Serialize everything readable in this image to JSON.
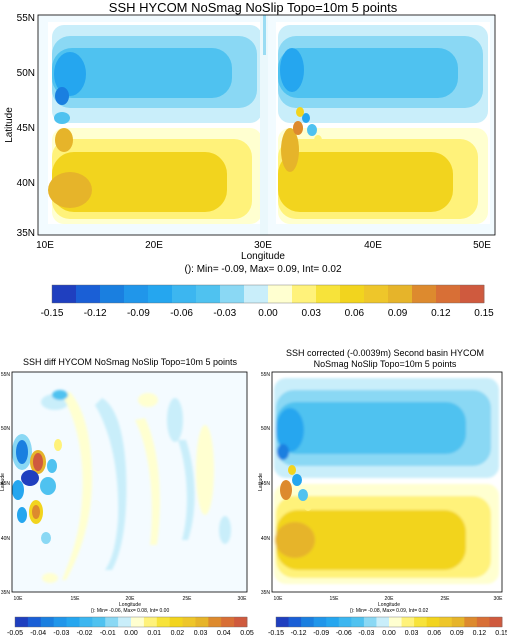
{
  "chart_data": [
    {
      "type": "heatmap",
      "title": "SSH HYCOM NoSmag NoSlip Topo=10m 5 points",
      "xlabel": "Longitude",
      "ylabel": "Latitude",
      "xticks": [
        "10E",
        "20E",
        "30E",
        "40E",
        "50E"
      ],
      "yticks": [
        "55N",
        "50N",
        "45N",
        "40N",
        "35N"
      ],
      "xlim": [
        10,
        51
      ],
      "ylim": [
        35,
        55
      ],
      "stats": "(): Min= -0.09, Max= 0.09, Int= 0.02",
      "colorbar": {
        "levels": [
          -0.15,
          -0.12,
          -0.09,
          -0.06,
          -0.03,
          0.0,
          0.03,
          0.06,
          0.09,
          0.12,
          0.15
        ],
        "labels": [
          "-0.15",
          "-0.12",
          "-0.09",
          "-0.06",
          "-0.03",
          "0.00",
          "0.03",
          "0.06",
          "0.09",
          "0.12",
          "0.15"
        ]
      },
      "basins": [
        {
          "lon_range": [
            11,
            30.5
          ],
          "lat_range": [
            36,
            54.5
          ]
        },
        {
          "lon_range": [
            31.5,
            50.5
          ],
          "lat_range": [
            36,
            54.5
          ]
        }
      ],
      "features": [
        {
          "center": [
            12,
            48.5
          ],
          "value": -0.09
        },
        {
          "center": [
            13,
            43
          ],
          "value": 0.08
        },
        {
          "center": [
            13.5,
            51
          ],
          "value": -0.06
        },
        {
          "center": [
            12,
            39
          ],
          "value": 0.06
        },
        {
          "center": [
            33.5,
            44.5
          ],
          "value": 0.09
        },
        {
          "center": [
            33.5,
            48.5
          ],
          "value": -0.09
        }
      ]
    },
    {
      "type": "heatmap",
      "title": "SSH diff HYCOM NoSmag NoSlip Topo=10m 5 points",
      "xlabel": "Longitude",
      "ylabel": "Latitude",
      "xticks": [
        "10E",
        "15E",
        "20E",
        "25E",
        "30E"
      ],
      "yticks": [
        "55N",
        "50N",
        "45N",
        "40N",
        "35N"
      ],
      "xlim": [
        10,
        30
      ],
      "ylim": [
        35,
        55
      ],
      "stats": "(): Min= -0.06, Max= 0.08, Int= 0.00",
      "colorbar": {
        "levels": [
          -0.05,
          -0.04,
          -0.03,
          -0.02,
          -0.01,
          0.0,
          0.01,
          0.02,
          0.03,
          0.04,
          0.05
        ],
        "labels": [
          "-0.05",
          "-0.04",
          "-0.03",
          "-0.02",
          "-0.01",
          "0.00",
          "0.01",
          "0.02",
          "0.03",
          "0.04",
          "0.05"
        ]
      },
      "features": [
        {
          "center": [
            11,
            45.5
          ],
          "value": -0.06
        },
        {
          "center": [
            12.3,
            45.6
          ],
          "value": 0.08
        },
        {
          "center": [
            12.2,
            42.3
          ],
          "value": 0.05
        },
        {
          "center": [
            11.1,
            42.6
          ],
          "value": -0.03
        },
        {
          "center": [
            13.5,
            43.8
          ],
          "value": -0.05
        },
        {
          "center": [
            14,
            46
          ],
          "value": 0.04
        }
      ]
    },
    {
      "type": "heatmap",
      "title": "SSH corrected (-0.0039m) Second basin HYCOM",
      "subtitle": "NoSmag NoSlip Topo=10m 5 points",
      "xlabel": "Longitude",
      "ylabel": "Latitude",
      "xticks": [
        "10E",
        "15E",
        "20E",
        "25E",
        "30E"
      ],
      "yticks": [
        "55N",
        "50N",
        "45N",
        "40N",
        "35N"
      ],
      "xlim": [
        10,
        30
      ],
      "ylim": [
        35,
        55
      ],
      "stats": "(): Min= -0.08, Max= 0.09, Int= 0.02",
      "colorbar": {
        "levels": [
          -0.15,
          -0.12,
          -0.09,
          -0.06,
          -0.03,
          0.0,
          0.03,
          0.06,
          0.09,
          0.12,
          0.15
        ],
        "labels": [
          "-0.15",
          "-0.12",
          "-0.09",
          "-0.06",
          "-0.03",
          "0.00",
          "0.03",
          "0.06",
          "0.09",
          "0.12",
          "0.15"
        ]
      },
      "features": [
        {
          "center": [
            12.5,
            44.3
          ],
          "value": 0.09
        },
        {
          "center": [
            12.3,
            48.5
          ],
          "value": -0.08
        },
        {
          "center": [
            12,
            41.5
          ],
          "value": 0.06
        }
      ]
    }
  ],
  "palette": [
    "#1f3fbf",
    "#1a7fe0",
    "#25a6ef",
    "#4fc2f0",
    "#8ad8f4",
    "#c9eefa",
    "#ffffd0",
    "#fff27a",
    "#f2d41e",
    "#e6b42a",
    "#dd8a2e",
    "#cf5a3e"
  ]
}
